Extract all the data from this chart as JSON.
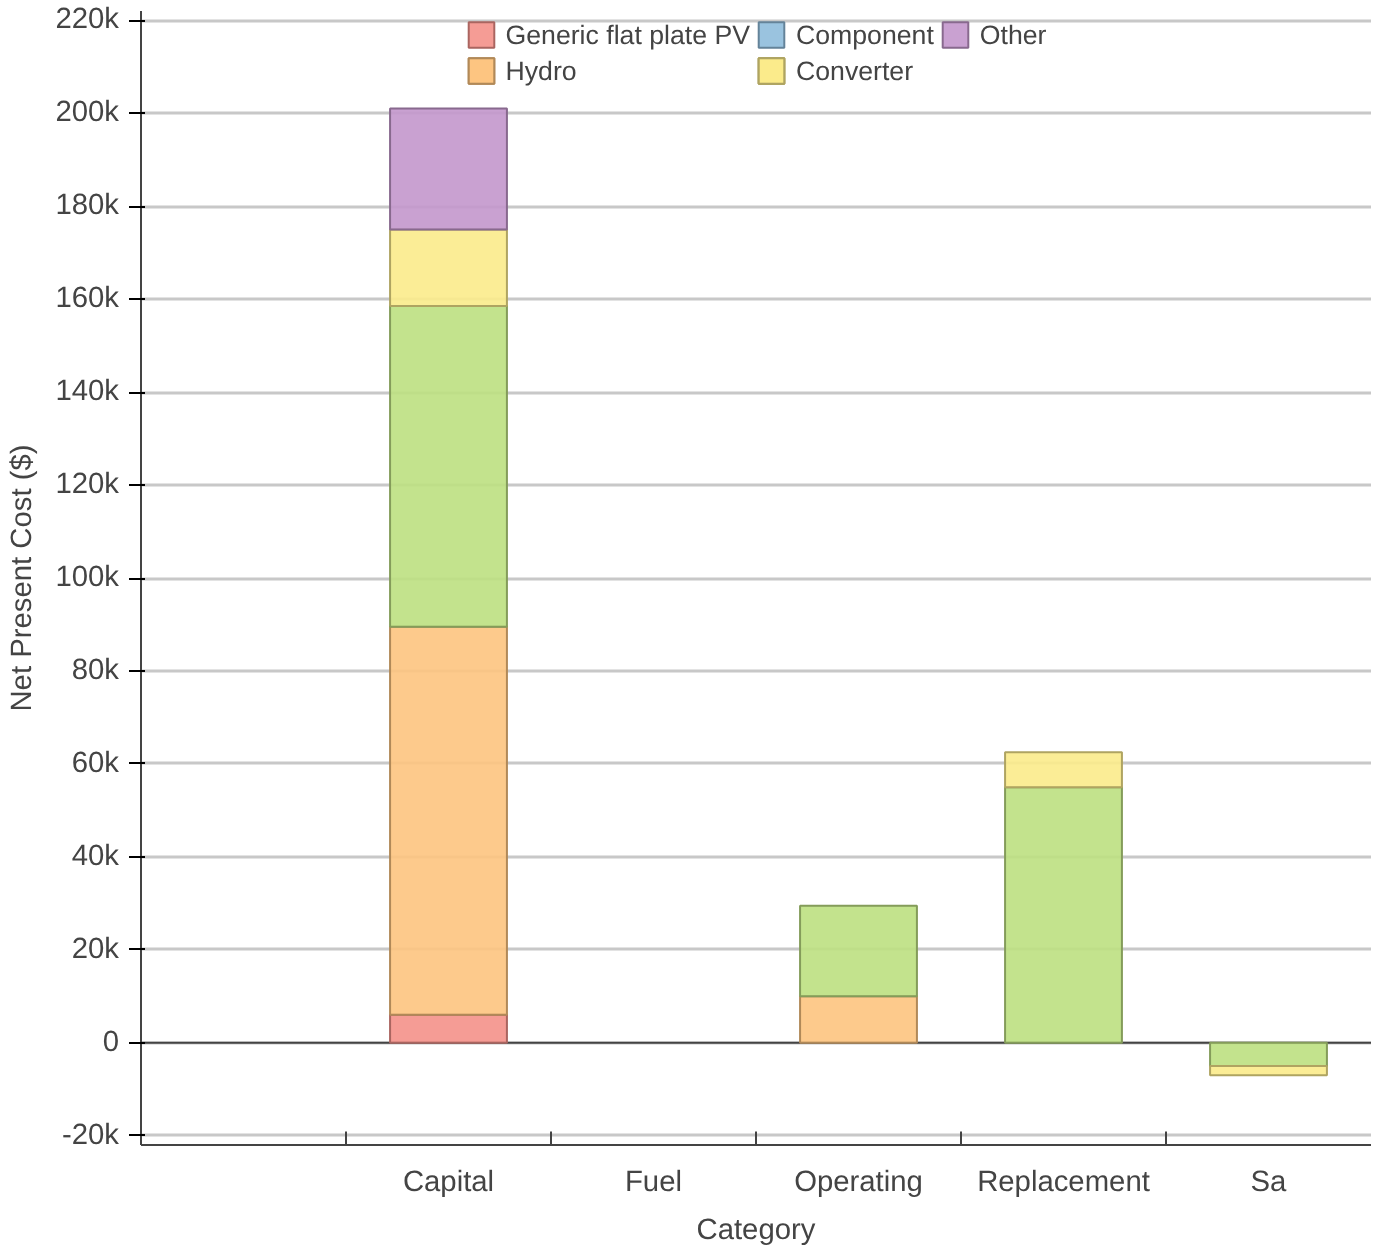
{
  "chart_data": {
    "type": "bar",
    "stacked": true,
    "xlabel": "Category",
    "ylabel": "Net Present Cost ($)",
    "categories": [
      null,
      "Capital",
      "Fuel",
      "Operating",
      "Replacement",
      "Sa"
    ],
    "series": [
      {
        "name": "Generic flat plate PV",
        "color": "#f4918a",
        "values": [
          null,
          6000,
          null,
          null,
          null,
          null
        ]
      },
      {
        "name": "Hydro",
        "color": "#fdc47f",
        "values": [
          null,
          83500,
          null,
          10000,
          null,
          null
        ]
      },
      {
        "name": "Component",
        "color": "#8fbcdb",
        "values": [
          null,
          null,
          null,
          null,
          null,
          null
        ]
      },
      {
        "color": "#bde081",
        "values": [
          null,
          69000,
          null,
          19500,
          55000,
          -5000
        ]
      },
      {
        "name": "Converter",
        "color": "#fbeb8b",
        "values": [
          null,
          16500,
          null,
          null,
          7500,
          -2000
        ]
      },
      {
        "name": "Other",
        "color": "#c397cc",
        "values": [
          null,
          26000,
          null,
          null,
          null,
          null
        ]
      }
    ],
    "ylim": [
      -22000,
      222000
    ],
    "yticks": [
      {
        "value": -20000,
        "label": "-20k"
      },
      0,
      {
        "value": 20000,
        "label": "20k"
      },
      {
        "value": 40000,
        "label": "40k"
      },
      {
        "value": 60000,
        "label": "60k"
      },
      {
        "value": 80000,
        "label": "80k"
      },
      {
        "value": 100000,
        "label": "100k"
      },
      {
        "value": 120000,
        "label": "120k"
      },
      {
        "value": 140000,
        "label": "140k"
      },
      {
        "value": 160000,
        "label": "160k"
      },
      {
        "value": 180000,
        "label": "180k"
      },
      {
        "value": 200000,
        "label": "200k"
      },
      {
        "value": 220000,
        "label": "220k"
      }
    ],
    "grid": "y",
    "legend": "top"
  }
}
